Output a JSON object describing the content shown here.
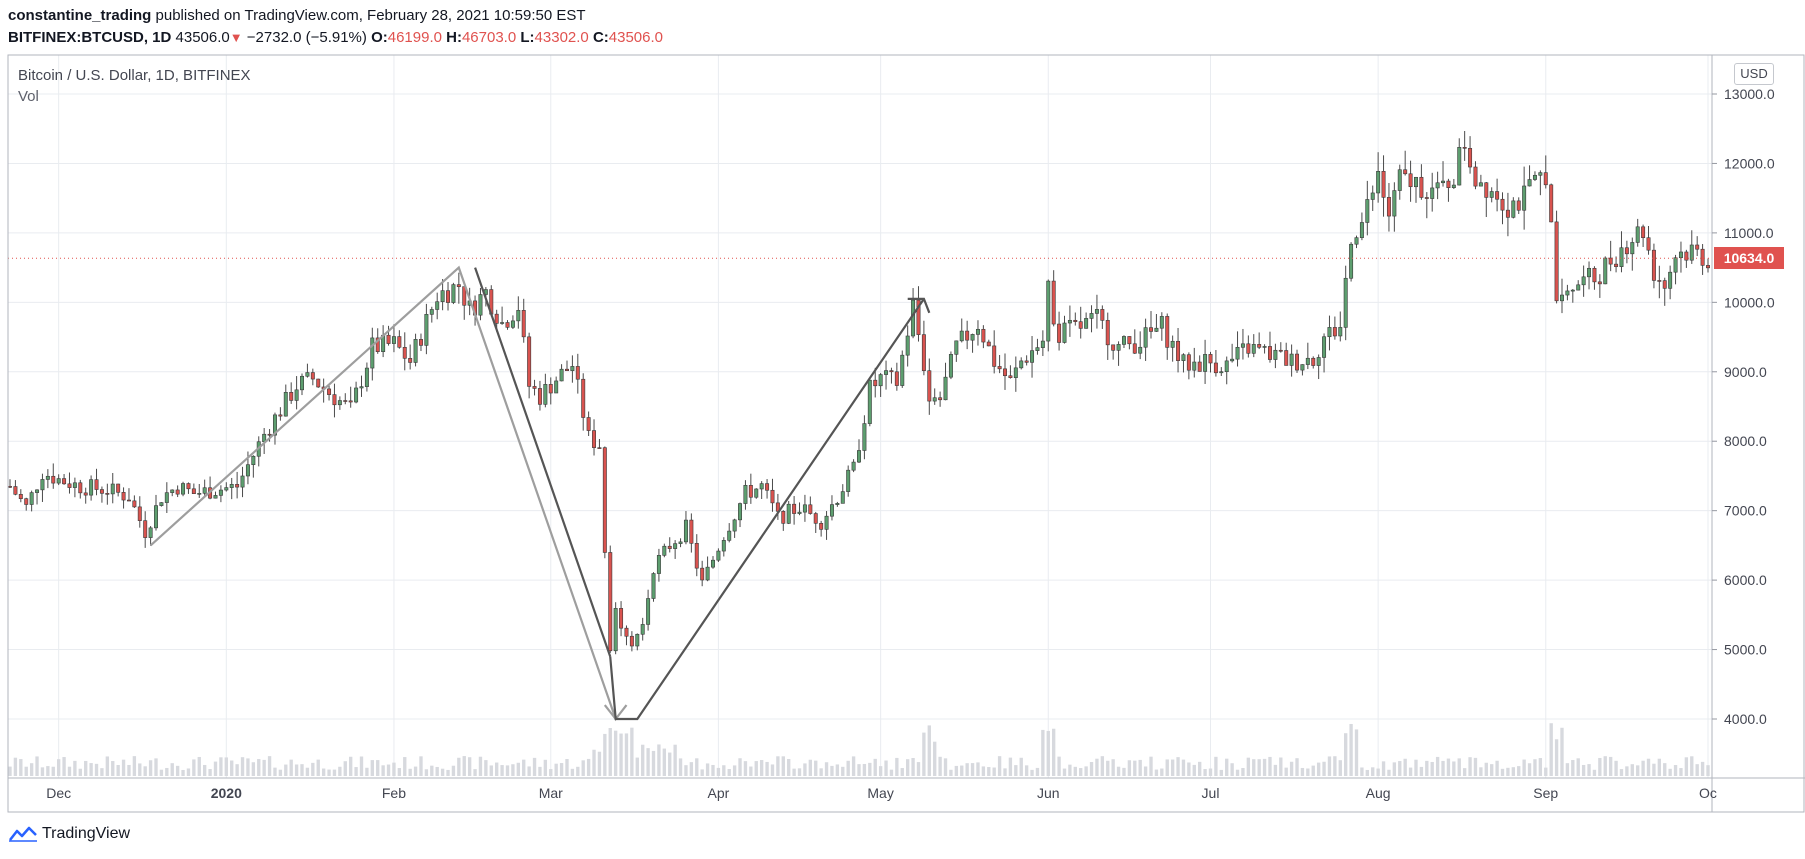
{
  "header": {
    "author": "constantine_trading",
    "published_text": "published on TradingView.com, February 28, 2021 10:59:50 EST",
    "symbol": "BITFINEX:BTCUSD, 1D",
    "price": "43506.0",
    "change": "−2732.0 (−5.91%)",
    "o_label": "O:",
    "o_value": "46199.0",
    "h_label": "H:",
    "h_value": "46703.0",
    "l_label": "L:",
    "l_value": "43302.0",
    "c_label": "C:",
    "c_value": "43506.0"
  },
  "legend": {
    "title": "Bitcoin / U.S. Dollar, 1D, BITFINEX",
    "vol": "Vol"
  },
  "currency": "USD",
  "last_price": "10634.0",
  "brand": "TradingView",
  "colors": {
    "up": "#5d9e6f",
    "down": "#d9534f",
    "wick": "#4a4a4a",
    "grid": "#e9ecf0",
    "volume": "#d7d9de",
    "drawing_light": "#9e9e9e",
    "drawing_dark": "#555555",
    "last_price_bg": "#e0524f"
  },
  "chart_data": {
    "type": "candlestick",
    "title": "Bitcoin / U.S. Dollar, 1D, BITFINEX",
    "ylim": [
      3250,
      13500
    ],
    "y_ticks": [
      4000,
      5000,
      6000,
      7000,
      8000,
      9000,
      10000,
      11000,
      12000,
      13000
    ],
    "y_tick_labels": [
      "4000.0",
      "5000.0",
      "6000.0",
      "7000.0",
      "8000.0",
      "9000.0",
      "10000.0",
      "11000.0",
      "12000.0",
      "13000.0"
    ],
    "x_range": [
      "2019-11-22",
      "2020-10-01"
    ],
    "x_ticks": [
      {
        "date": "2019-12-01",
        "label": "Dec"
      },
      {
        "date": "2020-01-01",
        "label": "2020"
      },
      {
        "date": "2020-02-01",
        "label": "Feb"
      },
      {
        "date": "2020-03-01",
        "label": "Mar"
      },
      {
        "date": "2020-04-01",
        "label": "Apr"
      },
      {
        "date": "2020-05-01",
        "label": "May"
      },
      {
        "date": "2020-06-01",
        "label": "Jun"
      },
      {
        "date": "2020-07-01",
        "label": "Jul"
      },
      {
        "date": "2020-08-01",
        "label": "Aug"
      },
      {
        "date": "2020-09-01",
        "label": "Sep"
      },
      {
        "date": "2020-10-01",
        "label": "Oc"
      }
    ],
    "close_path": [
      [
        "2019-11-22",
        7350
      ],
      [
        "2019-11-25",
        7050
      ],
      [
        "2019-11-28",
        7550
      ],
      [
        "2019-12-01",
        7450
      ],
      [
        "2019-12-05",
        7350
      ],
      [
        "2019-12-10",
        7300
      ],
      [
        "2019-12-14",
        7200
      ],
      [
        "2019-12-17",
        6700
      ],
      [
        "2019-12-20",
        7200
      ],
      [
        "2019-12-23",
        7350
      ],
      [
        "2019-12-26",
        7250
      ],
      [
        "2019-12-30",
        7300
      ],
      [
        "2020-01-03",
        7350
      ],
      [
        "2020-01-06",
        7800
      ],
      [
        "2020-01-08",
        8100
      ],
      [
        "2020-01-14",
        8800
      ],
      [
        "2020-01-17",
        8900
      ],
      [
        "2020-01-20",
        8700
      ],
      [
        "2020-01-24",
        8450
      ],
      [
        "2020-01-28",
        9350
      ],
      [
        "2020-02-01",
        9400
      ],
      [
        "2020-02-04",
        9150
      ],
      [
        "2020-02-09",
        10100
      ],
      [
        "2020-02-13",
        10250
      ],
      [
        "2020-02-15",
        9900
      ],
      [
        "2020-02-18",
        10150
      ],
      [
        "2020-02-21",
        9700
      ],
      [
        "2020-02-24",
        9950
      ],
      [
        "2020-02-26",
        8800
      ],
      [
        "2020-02-28",
        8650
      ],
      [
        "2020-03-02",
        8900
      ],
      [
        "2020-03-05",
        9100
      ],
      [
        "2020-03-08",
        8050
      ],
      [
        "2020-03-10",
        7950
      ],
      [
        "2020-03-12",
        4900
      ],
      [
        "2020-03-13",
        5550
      ],
      [
        "2020-03-16",
        5100
      ],
      [
        "2020-03-18",
        5350
      ],
      [
        "2020-03-20",
        6200
      ],
      [
        "2020-03-23",
        6500
      ],
      [
        "2020-03-26",
        6750
      ],
      [
        "2020-03-29",
        5950
      ],
      [
        "2020-04-02",
        6650
      ],
      [
        "2020-04-06",
        7250
      ],
      [
        "2020-04-09",
        7350
      ],
      [
        "2020-04-12",
        6900
      ],
      [
        "2020-04-16",
        7050
      ],
      [
        "2020-04-20",
        6850
      ],
      [
        "2020-04-23",
        7200
      ],
      [
        "2020-04-26",
        7600
      ],
      [
        "2020-04-29",
        8750
      ],
      [
        "2020-05-01",
        8900
      ],
      [
        "2020-05-04",
        8850
      ],
      [
        "2020-05-07",
        9950
      ],
      [
        "2020-05-10",
        8700
      ],
      [
        "2020-05-12",
        8600
      ],
      [
        "2020-05-15",
        9350
      ],
      [
        "2020-05-19",
        9700
      ],
      [
        "2020-05-22",
        9150
      ],
      [
        "2020-05-25",
        8850
      ],
      [
        "2020-05-27",
        9150
      ],
      [
        "2020-05-31",
        9450
      ],
      [
        "2020-06-01",
        10150
      ],
      [
        "2020-06-03",
        9550
      ],
      [
        "2020-06-07",
        9650
      ],
      [
        "2020-06-10",
        9750
      ],
      [
        "2020-06-14",
        9350
      ],
      [
        "2020-06-18",
        9450
      ],
      [
        "2020-06-22",
        9650
      ],
      [
        "2020-06-26",
        9100
      ],
      [
        "2020-06-30",
        9150
      ],
      [
        "2020-07-04",
        9100
      ],
      [
        "2020-07-08",
        9350
      ],
      [
        "2020-07-12",
        9250
      ],
      [
        "2020-07-16",
        9150
      ],
      [
        "2020-07-20",
        9200
      ],
      [
        "2020-07-22",
        9500
      ],
      [
        "2020-07-25",
        9650
      ],
      [
        "2020-07-27",
        11000
      ],
      [
        "2020-07-29",
        11150
      ],
      [
        "2020-08-01",
        11800
      ],
      [
        "2020-08-03",
        11250
      ],
      [
        "2020-08-05",
        11750
      ],
      [
        "2020-08-09",
        11700
      ],
      [
        "2020-08-12",
        11550
      ],
      [
        "2020-08-15",
        11850
      ],
      [
        "2020-08-17",
        12300
      ],
      [
        "2020-08-19",
        11800
      ],
      [
        "2020-08-22",
        11650
      ],
      [
        "2020-08-25",
        11400
      ],
      [
        "2020-08-28",
        11500
      ],
      [
        "2020-09-01",
        11900
      ],
      [
        "2020-09-03",
        10200
      ],
      [
        "2020-09-06",
        10250
      ],
      [
        "2020-09-10",
        10350
      ],
      [
        "2020-09-14",
        10700
      ],
      [
        "2020-09-17",
        10950
      ],
      [
        "2020-09-19",
        11050
      ],
      [
        "2020-09-21",
        10450
      ],
      [
        "2020-09-23",
        10250
      ],
      [
        "2020-09-25",
        10700
      ],
      [
        "2020-09-28",
        10750
      ],
      [
        "2020-10-01",
        10634
      ]
    ],
    "volume_spike_dates": [
      "2020-03-12",
      "2020-03-13",
      "2020-03-15",
      "2020-05-10",
      "2020-06-01",
      "2020-07-27",
      "2020-09-03"
    ],
    "drawings": {
      "light_path": [
        [
          "2019-12-18",
          6500
        ],
        [
          "2020-02-13",
          10500
        ],
        [
          "2020-03-13",
          4000
        ],
        [
          "2020-03-15",
          4200
        ]
      ],
      "light_arrow_left": [
        [
          "2020-03-11",
          4200
        ],
        [
          "2020-03-13",
          4000
        ]
      ],
      "dark_path": [
        [
          "2020-02-16",
          10500
        ],
        [
          "2020-03-12",
          4900
        ]
      ],
      "dark_path_2": [
        [
          "2020-03-12",
          4900
        ],
        [
          "2020-03-13",
          4000
        ],
        [
          "2020-03-17",
          4000
        ],
        [
          "2020-05-09",
          10050
        ]
      ],
      "dark_arrow": [
        [
          "2020-05-06",
          10050
        ],
        [
          "2020-05-09",
          10050
        ],
        [
          "2020-05-10",
          9850
        ]
      ]
    }
  }
}
